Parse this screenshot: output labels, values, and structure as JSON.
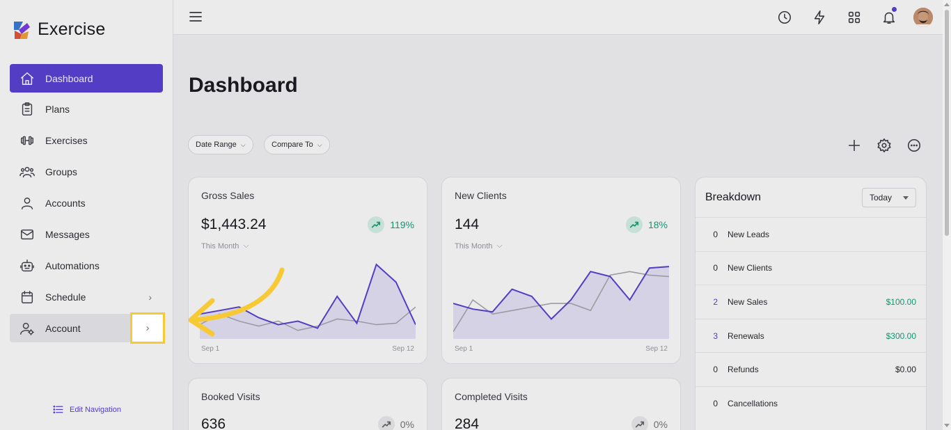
{
  "app": {
    "name": "Exercise"
  },
  "sidebar": {
    "items": [
      {
        "label": "Dashboard",
        "icon": "home-icon",
        "active": true
      },
      {
        "label": "Plans",
        "icon": "clipboard-icon"
      },
      {
        "label": "Exercises",
        "icon": "dumbbell-icon"
      },
      {
        "label": "Groups",
        "icon": "users-icon"
      },
      {
        "label": "Accounts",
        "icon": "user-icon"
      },
      {
        "label": "Messages",
        "icon": "mail-icon"
      },
      {
        "label": "Automations",
        "icon": "robot-icon"
      },
      {
        "label": "Schedule",
        "icon": "calendar-icon",
        "has_chevron": true
      },
      {
        "label": "Account",
        "icon": "user-settings-icon",
        "has_chevron": true
      }
    ],
    "edit_nav": "Edit Navigation"
  },
  "header": {
    "icons": [
      "history-icon",
      "lightning-icon",
      "apps-grid-icon",
      "bell-icon",
      "avatar"
    ]
  },
  "main": {
    "title": "Dashboard",
    "filters": [
      {
        "label": "Date Range"
      },
      {
        "label": "Compare To"
      }
    ],
    "actions": [
      "plus-icon",
      "gear-icon",
      "more-icon"
    ],
    "cards": [
      {
        "title": "Gross Sales",
        "value": "$1,443.24",
        "trend": "119%",
        "period": "This Month",
        "x_start": "Sep 1",
        "x_end": "Sep 12",
        "series_current": [
          35,
          40,
          45,
          30,
          20,
          25,
          15,
          60,
          22,
          105,
          80,
          20
        ],
        "series_previous": [
          20,
          35,
          25,
          18,
          25,
          12,
          18,
          28,
          25,
          20,
          22,
          45
        ]
      },
      {
        "title": "New Clients",
        "value": "144",
        "trend": "18%",
        "period": "This Month",
        "x_start": "Sep 1",
        "x_end": "Sep 12",
        "series_current": [
          50,
          42,
          38,
          70,
          60,
          28,
          55,
          95,
          88,
          55,
          100,
          102
        ],
        "series_previous": [
          10,
          55,
          35,
          40,
          45,
          50,
          50,
          40,
          90,
          95,
          90,
          88
        ]
      },
      {
        "title": "Booked Visits",
        "value": "636",
        "trend": "0%"
      },
      {
        "title": "Completed Visits",
        "value": "284",
        "trend": "0%"
      }
    ],
    "breakdown": {
      "title": "Breakdown",
      "select": "Today",
      "rows": [
        {
          "count": "0",
          "label": "New Leads",
          "amount": ""
        },
        {
          "count": "0",
          "label": "New Clients",
          "amount": ""
        },
        {
          "count": "2",
          "label": "New Sales",
          "amount": "$100.00",
          "highlight": true
        },
        {
          "count": "3",
          "label": "Renewals",
          "amount": "$300.00",
          "highlight": true
        },
        {
          "count": "0",
          "label": "Refunds",
          "amount": "$0.00"
        },
        {
          "count": "0",
          "label": "Cancellations",
          "amount": ""
        }
      ]
    }
  },
  "colors": {
    "accent": "#5b43d6",
    "positive": "#16a37a",
    "highlight": "#f7c935"
  }
}
